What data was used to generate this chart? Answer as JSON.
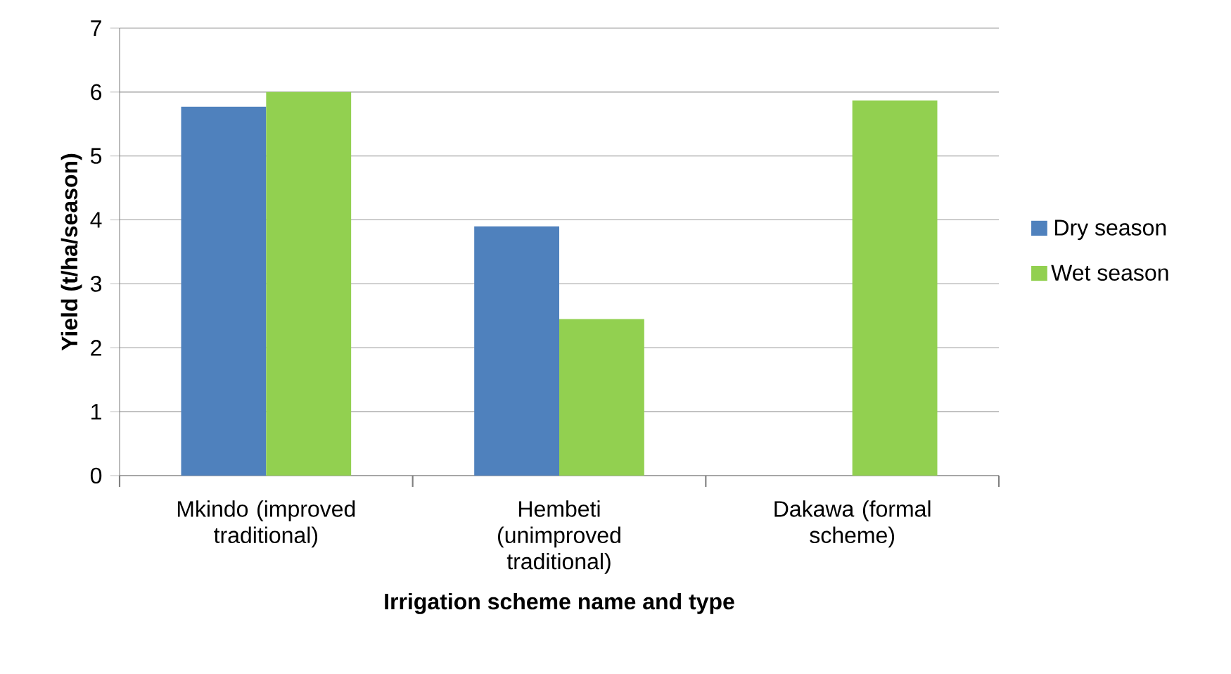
{
  "chart_data": {
    "type": "bar",
    "xlabel": "Irrigation scheme name and type",
    "ylabel": "Yield (t/ha/season)",
    "categories": [
      "Mkindo (improved traditional)",
      "Hembeti (unimproved traditional)",
      "Dakawa (formal scheme)"
    ],
    "series": [
      {
        "name": "Dry season",
        "color": "#4f81bd",
        "values": [
          5.77,
          3.9,
          null
        ]
      },
      {
        "name": "Wet season",
        "color": "#92d050",
        "values": [
          6.0,
          2.45,
          5.87
        ]
      }
    ],
    "ylim": [
      0,
      7
    ],
    "yticks": [
      0,
      1,
      2,
      3,
      4,
      5,
      6,
      7
    ],
    "grid": "y",
    "legend": "right"
  }
}
